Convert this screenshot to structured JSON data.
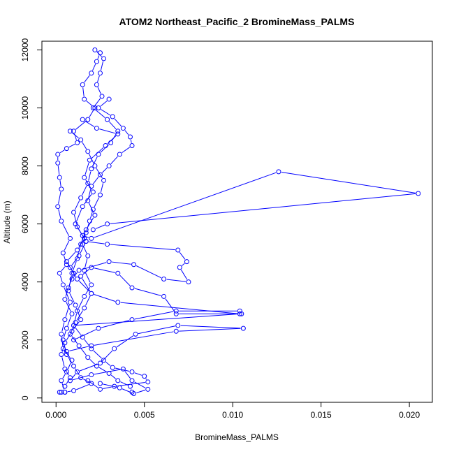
{
  "chart_data": {
    "type": "line",
    "title": "ATOM2 Northeast_Pacific_2 BromineMass_PALMS",
    "xlabel": "BromineMass_PALMS",
    "ylabel": "Altitude (m)",
    "xlim": [
      -0.0008,
      0.0213
    ],
    "ylim": [
      -150,
      12300
    ],
    "xticks": [
      0.0,
      0.005,
      0.01,
      0.015,
      0.02
    ],
    "xtick_labels": [
      "0.000",
      "0.005",
      "0.010",
      "0.015",
      "0.020"
    ],
    "yticks": [
      0,
      2000,
      4000,
      6000,
      8000,
      10000,
      12000
    ],
    "ytick_labels": [
      "0",
      "2000",
      "4000",
      "6000",
      "8000",
      "10000",
      "12000"
    ],
    "grid": false,
    "marker": "open-circle",
    "color": "#0000ff",
    "series": [
      {
        "points": [
          [
            0.0002,
            200
          ],
          [
            0.0003,
            200
          ],
          [
            0.0005,
            200
          ],
          [
            0.0003,
            600
          ],
          [
            0.0006,
            900
          ],
          [
            0.0009,
            1300
          ],
          [
            0.0004,
            1700
          ],
          [
            0.0003,
            2200
          ],
          [
            0.0005,
            2700
          ],
          [
            0.0008,
            3300
          ],
          [
            0.0004,
            3900
          ],
          [
            0.0002,
            4300
          ],
          [
            0.0006,
            4600
          ],
          [
            0.0004,
            5000
          ],
          [
            0.0008,
            5500
          ],
          [
            0.0003,
            6100
          ],
          [
            0.0001,
            6600
          ],
          [
            0.0003,
            7200
          ],
          [
            0.0002,
            7600
          ],
          [
            0.0001,
            8100
          ],
          [
            0.0001,
            8400
          ],
          [
            0.0006,
            8600
          ],
          [
            0.0012,
            8800
          ],
          [
            0.001,
            9200
          ],
          [
            0.0018,
            9600
          ],
          [
            0.0022,
            10000
          ],
          [
            0.0016,
            10300
          ],
          [
            0.0015,
            10800
          ],
          [
            0.002,
            11200
          ],
          [
            0.0023,
            11600
          ],
          [
            0.0025,
            11900
          ],
          [
            0.0022,
            12000
          ],
          [
            0.0027,
            11700
          ],
          [
            0.0025,
            11200
          ],
          [
            0.0023,
            10800
          ],
          [
            0.0026,
            10400
          ],
          [
            0.0021,
            10000
          ],
          [
            0.0029,
            9600
          ],
          [
            0.0035,
            9200
          ],
          [
            0.0031,
            8800
          ],
          [
            0.0024,
            8400
          ],
          [
            0.002,
            7900
          ],
          [
            0.0018,
            7400
          ],
          [
            0.0014,
            6900
          ],
          [
            0.001,
            6400
          ],
          [
            0.0012,
            5900
          ],
          [
            0.0017,
            5400
          ],
          [
            0.0013,
            4900
          ],
          [
            0.0008,
            4500
          ],
          [
            0.0012,
            4100
          ],
          [
            0.002,
            3600
          ],
          [
            0.0016,
            3100
          ],
          [
            0.0011,
            2600
          ],
          [
            0.0008,
            2200
          ],
          [
            0.0013,
            1800
          ],
          [
            0.0018,
            1400
          ],
          [
            0.0023,
            1100
          ],
          [
            0.003,
            850
          ],
          [
            0.0035,
            600
          ],
          [
            0.0042,
            400
          ],
          [
            0.0043,
            200
          ]
        ]
      },
      {
        "points": [
          [
            0.0015,
            9600
          ],
          [
            0.0023,
            9300
          ],
          [
            0.0035,
            9100
          ],
          [
            0.0028,
            8700
          ],
          [
            0.0019,
            8200
          ],
          [
            0.0016,
            7600
          ],
          [
            0.0021,
            7100
          ],
          [
            0.0015,
            6600
          ],
          [
            0.0011,
            6000
          ],
          [
            0.0016,
            5500
          ],
          [
            0.0012,
            5100
          ],
          [
            0.0006,
            4700
          ],
          [
            0.001,
            4300
          ],
          [
            0.0007,
            3800
          ],
          [
            0.0005,
            3400
          ],
          [
            0.0009,
            2900
          ],
          [
            0.0006,
            2400
          ],
          [
            0.0004,
            2000
          ],
          [
            0.0006,
            1500
          ],
          [
            0.001,
            1100
          ],
          [
            0.0014,
            700
          ],
          [
            0.002,
            500
          ],
          [
            0.001,
            250
          ],
          [
            0.0005,
            200
          ]
        ]
      },
      {
        "points": [
          [
            0.0008,
            9200
          ],
          [
            0.0014,
            8900
          ],
          [
            0.0018,
            8500
          ],
          [
            0.0022,
            8000
          ],
          [
            0.0027,
            7500
          ],
          [
            0.0025,
            7000
          ],
          [
            0.0021,
            6500
          ],
          [
            0.0019,
            6100
          ],
          [
            0.0017,
            5700
          ],
          [
            0.0015,
            5300
          ],
          [
            0.0018,
            4900
          ],
          [
            0.0016,
            4400
          ],
          [
            0.002,
            3900
          ],
          [
            0.0016,
            3500
          ],
          [
            0.0012,
            3000
          ],
          [
            0.001,
            2500
          ],
          [
            0.0015,
            2100
          ],
          [
            0.002,
            1700
          ],
          [
            0.0027,
            1300
          ],
          [
            0.0032,
            1050
          ],
          [
            0.0043,
            900
          ],
          [
            0.005,
            750
          ],
          [
            0.0052,
            550
          ],
          [
            0.0033,
            400
          ],
          [
            0.0025,
            300
          ],
          [
            0.0018,
            600
          ]
        ]
      },
      {
        "points": [
          [
            0.003,
            10300
          ],
          [
            0.0024,
            10000
          ],
          [
            0.0032,
            9700
          ],
          [
            0.0038,
            9300
          ],
          [
            0.0042,
            9000
          ],
          [
            0.0043,
            8700
          ],
          [
            0.0036,
            8400
          ],
          [
            0.003,
            8000
          ],
          [
            0.0025,
            7700
          ],
          [
            0.002,
            7300
          ],
          [
            0.0018,
            6800
          ],
          [
            0.0022,
            6300
          ],
          [
            0.0017,
            5800
          ],
          [
            0.0014,
            5300
          ],
          [
            0.0012,
            4800
          ],
          [
            0.0009,
            4300
          ],
          [
            0.0007,
            3700
          ],
          [
            0.0011,
            3200
          ],
          [
            0.0014,
            2700
          ],
          [
            0.0009,
            2300
          ],
          [
            0.0005,
            1900
          ],
          [
            0.0003,
            1500
          ],
          [
            0.0005,
            1000
          ],
          [
            0.0008,
            700
          ],
          [
            0.0005,
            400
          ]
        ]
      },
      {
        "points": [
          [
            0.0009,
            4100
          ],
          [
            0.0013,
            4400
          ],
          [
            0.003,
            4700
          ],
          [
            0.0044,
            4600
          ],
          [
            0.0061,
            4100
          ],
          [
            0.0075,
            4000
          ],
          [
            0.007,
            4500
          ],
          [
            0.0074,
            4700
          ],
          [
            0.0069,
            5100
          ],
          [
            0.0029,
            5300
          ],
          [
            0.0017,
            5400
          ]
        ]
      },
      {
        "points": [
          [
            0.0015,
            5600
          ],
          [
            0.002,
            5500
          ],
          [
            0.0126,
            7800
          ],
          [
            0.0205,
            7050
          ],
          [
            0.0029,
            6000
          ],
          [
            0.0021,
            5800
          ]
        ]
      },
      {
        "points": [
          [
            0.001,
            2000
          ],
          [
            0.0024,
            2400
          ],
          [
            0.0043,
            2700
          ],
          [
            0.0068,
            3000
          ],
          [
            0.0104,
            3000
          ],
          [
            0.0105,
            2900
          ],
          [
            0.0068,
            2900
          ],
          [
            0.0061,
            3500
          ],
          [
            0.0043,
            3800
          ],
          [
            0.0035,
            4300
          ],
          [
            0.002,
            4500
          ],
          [
            0.0014,
            4200
          ],
          [
            0.002,
            3600
          ],
          [
            0.0035,
            3300
          ],
          [
            0.0104,
            2900
          ],
          [
            0.001,
            2500
          ]
        ]
      },
      {
        "points": [
          [
            0.0006,
            1600
          ],
          [
            0.002,
            1800
          ],
          [
            0.0068,
            2300
          ],
          [
            0.0106,
            2400
          ],
          [
            0.0069,
            2500
          ],
          [
            0.0045,
            2200
          ],
          [
            0.0033,
            1700
          ],
          [
            0.0025,
            1200
          ],
          [
            0.0012,
            900
          ],
          [
            0.0008,
            600
          ],
          [
            0.002,
            800
          ],
          [
            0.0038,
            1000
          ],
          [
            0.0043,
            600
          ],
          [
            0.0052,
            300
          ],
          [
            0.0044,
            150
          ],
          [
            0.0036,
            350
          ],
          [
            0.0025,
            500
          ]
        ]
      }
    ]
  }
}
